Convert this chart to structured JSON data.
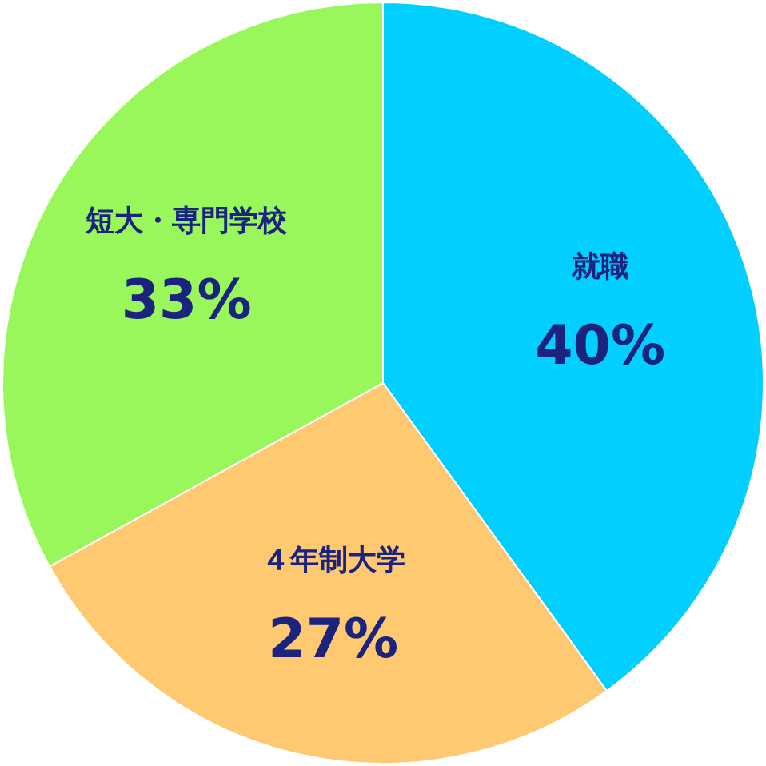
{
  "chart_data": {
    "type": "pie",
    "categories": [
      "就職",
      "４年制大学",
      "短大・専門学校"
    ],
    "values": [
      40,
      27,
      33
    ],
    "value_labels": [
      "40%",
      "27%",
      "33%"
    ],
    "colors": [
      "#00cfff",
      "#ffc971",
      "#99f75b"
    ]
  }
}
